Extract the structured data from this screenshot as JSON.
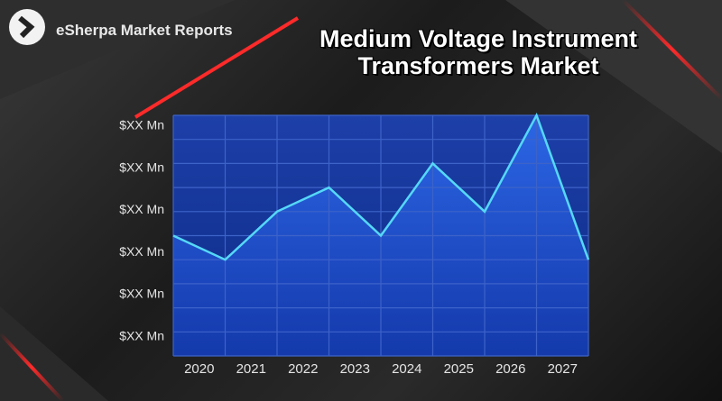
{
  "brand": "eSherpa Market Reports",
  "chart_data": {
    "type": "line",
    "title": "Medium Voltage Instrument Transformers Market",
    "x": [
      2019.5,
      2020.5,
      2021.5,
      2022.5,
      2023.5,
      2024.5,
      2025.5,
      2026.5,
      2027.5
    ],
    "values": [
      5,
      4,
      6,
      7,
      5,
      8,
      6,
      10,
      4
    ],
    "color": "#55d8f7",
    "xlim": [
      2019.5,
      2027.5
    ],
    "ylim": [
      0,
      10
    ],
    "xticks": [
      2020,
      2021,
      2022,
      2023,
      2024,
      2025,
      2026,
      2027
    ],
    "yticks": [
      {
        "value": 0.8,
        "label": "$XX Mn"
      },
      {
        "value": 2.55,
        "label": "$XX Mn"
      },
      {
        "value": 4.3,
        "label": "$XX Mn"
      },
      {
        "value": 6.05,
        "label": "$XX Mn"
      },
      {
        "value": 7.8,
        "label": "$XX Mn"
      },
      {
        "value": 9.55,
        "label": "$XX Mn"
      }
    ],
    "xgrid": [
      2019.5,
      2020.5,
      2021.5,
      2022.5,
      2023.5,
      2024.5,
      2025.5,
      2026.5,
      2027.5
    ],
    "ygrid": [
      0,
      1,
      2,
      3,
      4,
      5,
      6,
      7,
      8,
      9,
      10
    ],
    "grid": true
  }
}
